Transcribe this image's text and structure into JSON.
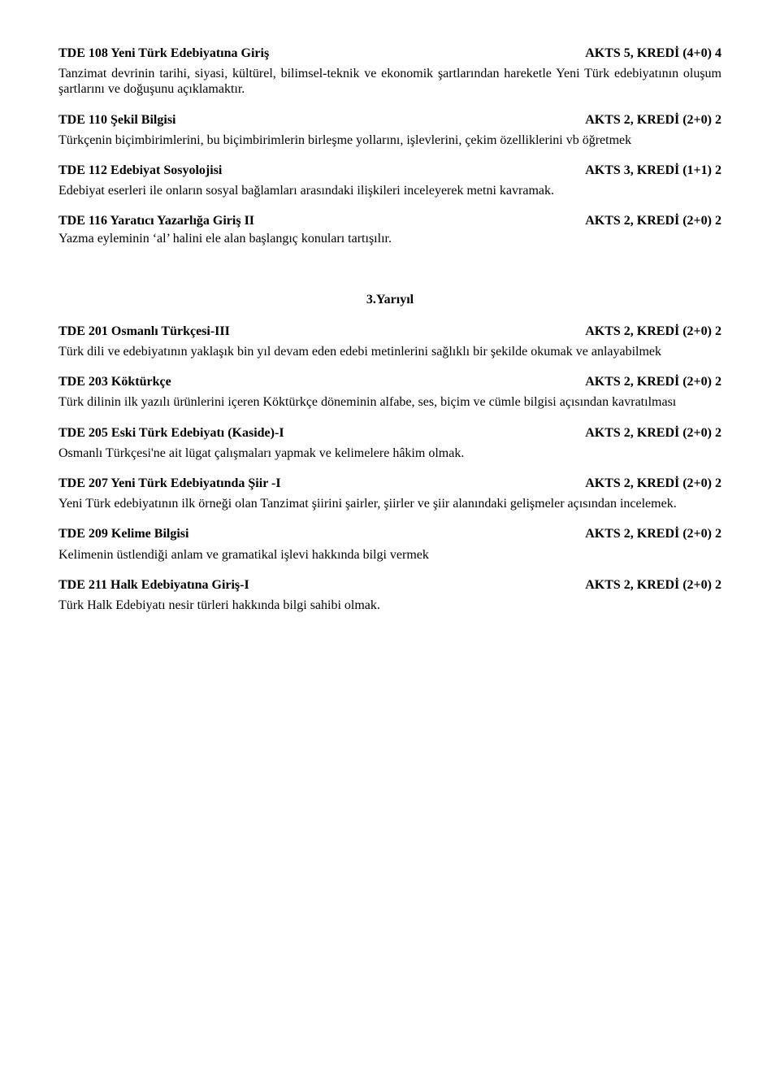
{
  "c108": {
    "title": "TDE 108 Yeni Türk Edebiyatına Giriş",
    "credit": "AKTS 5, KREDİ (4+0) 4",
    "desc": "Tanzimat devrinin tarihi, siyasi, kültürel, bilimsel-teknik ve ekonomik şartlarından hareketle Yeni Türk edebiyatının oluşum şartlarını ve doğuşunu açıklamaktır."
  },
  "c110": {
    "title": "TDE 110 Şekil Bilgisi",
    "credit": "AKTS 2, KREDİ (2+0) 2",
    "desc": "Türkçenin biçimbirimlerini, bu biçimbirimlerin birleşme yollarını, işlevlerini, çekim özelliklerini vb öğretmek"
  },
  "c112": {
    "title": "TDE 112 Edebiyat Sosyolojisi",
    "credit": "AKTS 3, KREDİ (1+1) 2",
    "desc": "Edebiyat eserleri ile onların sosyal bağlamları arasındaki ilişkileri inceleyerek metni kavramak."
  },
  "c116": {
    "title": "TDE 116  Yaratıcı Yazarlığa Giriş II",
    "credit": "AKTS 2, KREDİ (2+0) 2",
    "desc": "Yazma eyleminin ‘al’ halini ele alan başlangıç konuları tartışılır."
  },
  "semester3": "3.Yarıyıl",
  "c201": {
    "title": "TDE 201 Osmanlı Türkçesi-III",
    "credit": "AKTS 2, KREDİ (2+0) 2",
    "desc": "Türk dili ve edebiyatının yaklaşık bin yıl devam eden edebi metinlerini sağlıklı bir şekilde okumak ve anlayabilmek"
  },
  "c203": {
    "title": "TDE 203 Köktürkçe",
    "credit": "AKTS 2, KREDİ (2+0) 2",
    "desc": "Türk dilinin ilk yazılı ürünlerini içeren Köktürkçe döneminin alfabe, ses, biçim ve cümle bilgisi açısından kavratılması"
  },
  "c205": {
    "title": "TDE 205 Eski Türk Edebiyatı (Kaside)-I",
    "credit": "AKTS 2, KREDİ (2+0) 2",
    "desc": "Osmanlı Türkçesi'ne ait lügat çalışmaları yapmak ve kelimelere hâkim olmak."
  },
  "c207": {
    "title": "TDE 207 Yeni Türk Edebiyatında Şiir -I",
    "credit": "AKTS 2, KREDİ (2+0) 2",
    "desc": "Yeni Türk edebiyatının ilk örneği olan Tanzimat şiirini şairler, şiirler ve şiir alanındaki gelişmeler açısından incelemek."
  },
  "c209": {
    "title": "TDE 209 Kelime Bilgisi",
    "credit": "AKTS 2, KREDİ (2+0) 2",
    "desc": "Kelimenin üstlendiği anlam ve gramatikal işlevi hakkında bilgi vermek"
  },
  "c211": {
    "title": "TDE 211 Halk Edebiyatına Giriş-I",
    "credit": "AKTS 2, KREDİ (2+0) 2",
    "desc": "Türk Halk Edebiyatı nesir türleri hakkında bilgi sahibi olmak."
  }
}
